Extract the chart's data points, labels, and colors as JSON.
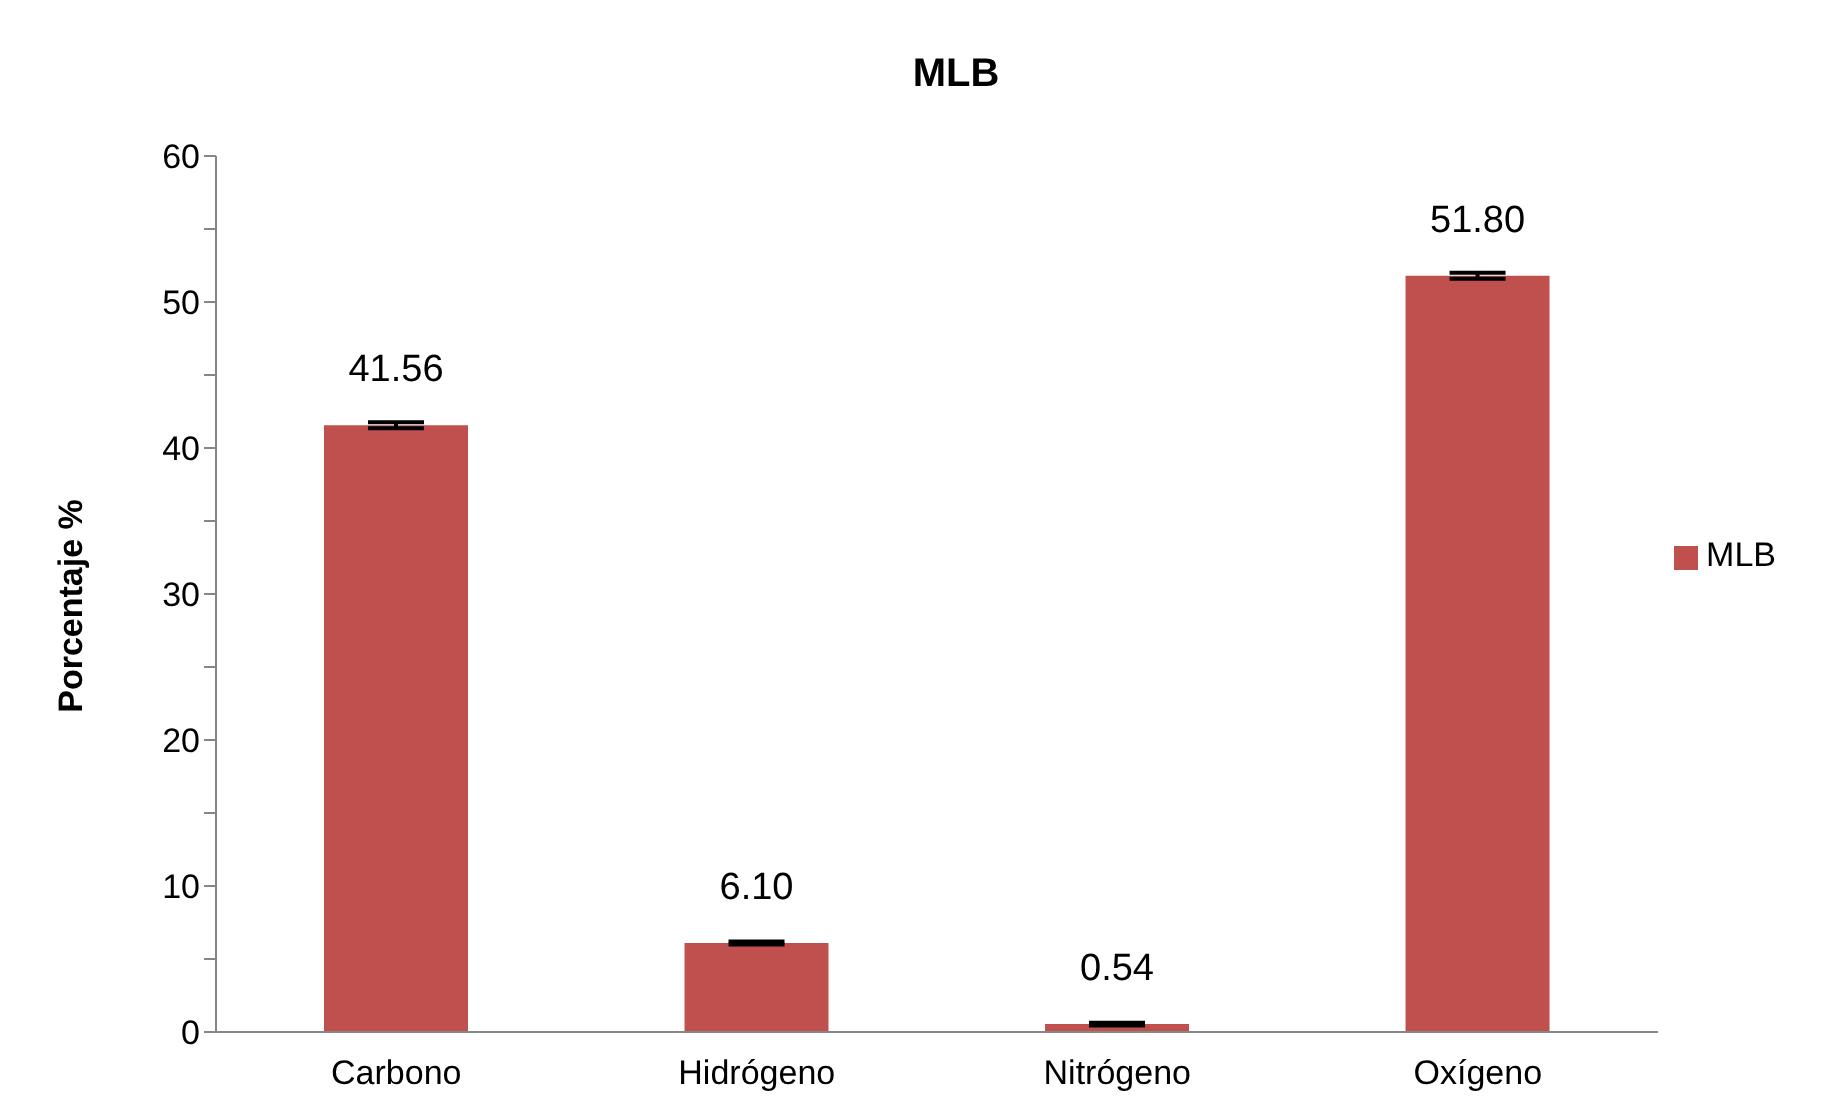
{
  "chart_data": {
    "type": "bar",
    "title": "MLB",
    "ylabel": "Porcentaje %",
    "categories": [
      "Carbono",
      "Hidrógeno",
      "Nitrógeno",
      "Oxígeno"
    ],
    "series": [
      {
        "name": "MLB",
        "color": "#c0504d",
        "values": [
          41.56,
          6.1,
          0.54,
          51.8
        ],
        "errors": [
          0.2,
          0.1,
          0.1,
          0.2
        ],
        "value_labels": [
          "41.56",
          "6.10",
          "0.54",
          "51.80"
        ]
      }
    ],
    "ylim": [
      0,
      60
    ],
    "yticks": [
      0,
      {
        "value": 5,
        "label": null
      },
      10,
      {
        "value": 15,
        "label": null
      },
      20,
      {
        "value": 25,
        "label": null
      },
      30,
      {
        "value": 35,
        "label": null
      },
      40,
      {
        "value": 45,
        "label": null
      },
      50,
      {
        "value": 55,
        "label": null
      },
      60
    ],
    "grid": false,
    "legend": "right"
  }
}
